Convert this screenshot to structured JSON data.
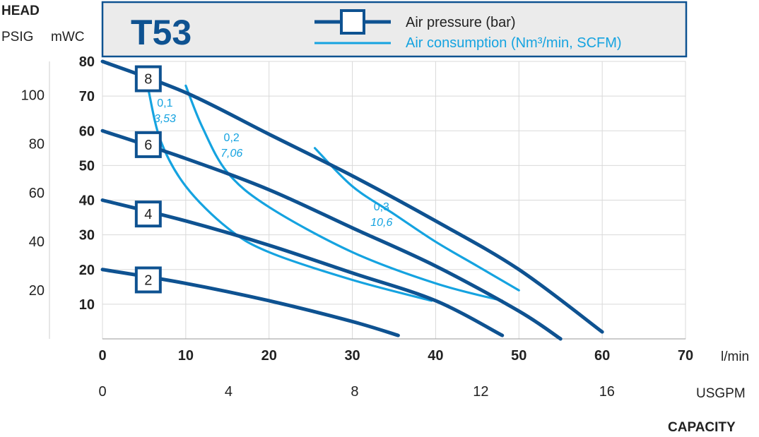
{
  "chart_data": {
    "type": "line",
    "title": "T53",
    "y_header": "HEAD",
    "y_units": [
      "PSIG",
      "mWC"
    ],
    "x_header": "CAPACITY",
    "x_units": [
      "l/min",
      "USGPM"
    ],
    "xlim": [
      0,
      70
    ],
    "ylim_mwc": [
      0,
      80
    ],
    "x_ticks_lmin": [
      0,
      10,
      20,
      30,
      40,
      50,
      60,
      70
    ],
    "x_ticks_usgpm": [
      0,
      4,
      8,
      12,
      16
    ],
    "y_ticks_mwc": [
      10,
      20,
      30,
      40,
      50,
      60,
      70,
      80
    ],
    "y_ticks_psig": [
      20,
      40,
      60,
      80,
      100
    ],
    "legend": {
      "position": "top",
      "items": [
        {
          "label": "Air pressure (bar)",
          "color": "#0e5291",
          "marker": "square"
        },
        {
          "label": "Air consumption (Nm³/min, SCFM)",
          "color": "#15a3e0",
          "marker": "line"
        }
      ]
    },
    "pressure_series": [
      {
        "label": "8",
        "label_at": [
          5.5,
          75
        ],
        "points": [
          [
            0,
            80
          ],
          [
            10,
            71
          ],
          [
            20,
            59
          ],
          [
            30,
            47
          ],
          [
            40,
            34
          ],
          [
            50,
            20
          ],
          [
            60,
            2
          ]
        ]
      },
      {
        "label": "6",
        "label_at": [
          5.5,
          56
        ],
        "points": [
          [
            0,
            60
          ],
          [
            10,
            52
          ],
          [
            20,
            43
          ],
          [
            30,
            32
          ],
          [
            40,
            21
          ],
          [
            50,
            8
          ],
          [
            55,
            0
          ]
        ]
      },
      {
        "label": "4",
        "label_at": [
          5.5,
          36
        ],
        "points": [
          [
            0,
            40
          ],
          [
            10,
            34
          ],
          [
            20,
            27
          ],
          [
            30,
            19
          ],
          [
            40,
            11
          ],
          [
            48,
            1
          ]
        ]
      },
      {
        "label": "2",
        "label_at": [
          5.5,
          17
        ],
        "points": [
          [
            0,
            20
          ],
          [
            10,
            16
          ],
          [
            20,
            11
          ],
          [
            30,
            5
          ],
          [
            35.5,
            1
          ]
        ]
      }
    ],
    "air_series": [
      {
        "label": "0,1",
        "label_italic": "3,53",
        "label_at": [
          7.5,
          67
        ],
        "points": [
          [
            5.5,
            72
          ],
          [
            7,
            57
          ],
          [
            10,
            44
          ],
          [
            15,
            32
          ],
          [
            20,
            25
          ],
          [
            30,
            17
          ],
          [
            39.5,
            11
          ]
        ]
      },
      {
        "label": "0,2",
        "label_italic": "7,06",
        "label_at": [
          15.5,
          57
        ],
        "points": [
          [
            10,
            73
          ],
          [
            12,
            61
          ],
          [
            15,
            48
          ],
          [
            20,
            38
          ],
          [
            30,
            25
          ],
          [
            40,
            16
          ],
          [
            48,
            11
          ]
        ]
      },
      {
        "label": "0,3",
        "label_italic": "10,6",
        "label_at": [
          33.5,
          37
        ],
        "points": [
          [
            25.5,
            55
          ],
          [
            30,
            44
          ],
          [
            35,
            36
          ],
          [
            40,
            28
          ],
          [
            45,
            21
          ],
          [
            50,
            14
          ]
        ]
      }
    ]
  }
}
